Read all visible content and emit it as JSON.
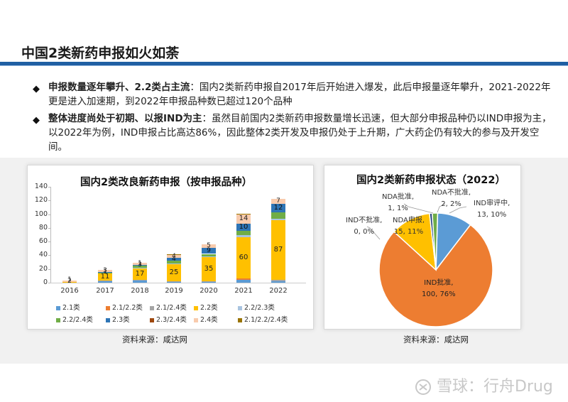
{
  "page": {
    "title": "中国2类新药申报如火如荼"
  },
  "bullets": [
    {
      "bold": "申报数量逐年攀升、2.2类占主流",
      "text": "：国内2类新药申报自2017年后开始进入爆发，此后申报量逐年攀升，2021-2022年更是进入加速期，到2022年申报品种数已超过120个品种"
    },
    {
      "bold": "整体进度尚处于初期、以报IND为主",
      "text": "：虽然目前国内2类新药申报数量增长迅速，但大部分申报品种仍以IND申报为主，以2022年为例，IND申报占比高达86%，因此整体2类开发及申报仍处于上升期，广大药企仍有较大的参与及开发空间。"
    }
  ],
  "left_panel": {
    "title": "国内2类改良新药申报（按申报品种）",
    "source": "资料来源：咸达网"
  },
  "right_panel": {
    "title": "国内2类新药申报状态（2022）",
    "source": "资料来源：咸达网"
  },
  "watermark": {
    "text": "雪球：行舟Drug"
  },
  "chart_data": [
    {
      "type": "bar",
      "stacked": true,
      "title": "国内2类改良新药申报（按申报品种）",
      "xlabel": "",
      "ylabel": "",
      "ylim": [
        0,
        140
      ],
      "yticks": [
        0,
        20,
        40,
        60,
        80,
        100,
        120,
        140
      ],
      "grid": false,
      "legend_position": "bottom",
      "categories": [
        "2016",
        "2017",
        "2018",
        "2019",
        "2020",
        "2021",
        "2022"
      ],
      "series": [
        {
          "name": "2.1类",
          "color": "#5b9bd5",
          "values": [
            0,
            2,
            3,
            1,
            1,
            4,
            2
          ]
        },
        {
          "name": "2.1/2.2类",
          "color": "#ed7d31",
          "values": [
            0,
            0,
            0,
            0,
            0,
            2,
            0
          ]
        },
        {
          "name": "2.1/2.4类",
          "color": "#a5a5a5",
          "values": [
            0,
            1,
            1,
            1,
            1,
            0,
            2
          ]
        },
        {
          "name": "2.2类",
          "color": "#ffc000",
          "values": [
            1,
            11,
            17,
            25,
            35,
            60,
            87
          ]
        },
        {
          "name": "2.2/2.3类",
          "color": "#a9c4e0",
          "values": [
            0,
            0,
            1,
            1,
            1,
            3,
            2
          ]
        },
        {
          "name": "2.2/2.4类",
          "color": "#70ad47",
          "values": [
            0,
            1,
            3,
            4,
            4,
            7,
            10
          ]
        },
        {
          "name": "2.3类",
          "color": "#2e75b6",
          "values": [
            0,
            1,
            1,
            4,
            9,
            10,
            12
          ]
        },
        {
          "name": "2.3/2.4类",
          "color": "#9e480e",
          "values": [
            0,
            0,
            0,
            0,
            0,
            0,
            0
          ]
        },
        {
          "name": "2.4类",
          "color": "#f8cbad",
          "values": [
            2,
            3,
            3,
            4,
            5,
            14,
            7
          ]
        },
        {
          "name": "2.1/2.2/2.4类",
          "color": "#997300",
          "values": [
            0,
            0,
            0,
            1,
            0,
            1,
            0
          ]
        }
      ],
      "data_labels": {
        "2016": [
          "1",
          "2"
        ],
        "2017": [
          "11",
          "1",
          "3"
        ],
        "2018": [
          "17",
          "3",
          "1"
        ],
        "2019": [
          "25",
          "4",
          "4"
        ],
        "2020": [
          "35",
          "9",
          "5"
        ],
        "2021": [
          "60",
          "10",
          "14"
        ],
        "2022": [
          "87",
          "12",
          "7"
        ]
      }
    },
    {
      "type": "pie",
      "title": "国内2类新药申报状态（2022）",
      "slices": [
        {
          "label": "IND审评中",
          "value": 13,
          "percent": "10%",
          "color": "#5b9bd5"
        },
        {
          "label": "IND批准",
          "value": 100,
          "percent": "76%",
          "color": "#ed7d31"
        },
        {
          "label": "IND不批准",
          "value": 0,
          "percent": "0%",
          "color": "#a5a5a5"
        },
        {
          "label": "NDA申报",
          "value": 15,
          "percent": "11%",
          "color": "#ffc000"
        },
        {
          "label": "NDA批准",
          "value": 1,
          "percent": "1%",
          "color": "#264478"
        },
        {
          "label": "NDA不批准",
          "value": 2,
          "percent": "2%",
          "color": "#70ad47"
        }
      ]
    }
  ],
  "labels": {
    "pie": {
      "nda_approve": [
        "NDA批准,",
        "1, 1%"
      ],
      "nda_reject": [
        "NDA不批准,",
        "2, 2%"
      ],
      "ind_review": [
        "IND审评中,",
        "13, 10%"
      ],
      "ind_reject": [
        "IND不批准,",
        "0, 0%"
      ],
      "nda_apply": [
        "NDA申报,",
        "15, 11%"
      ],
      "ind_approve": [
        "IND批准,",
        "100, 76%"
      ]
    }
  }
}
